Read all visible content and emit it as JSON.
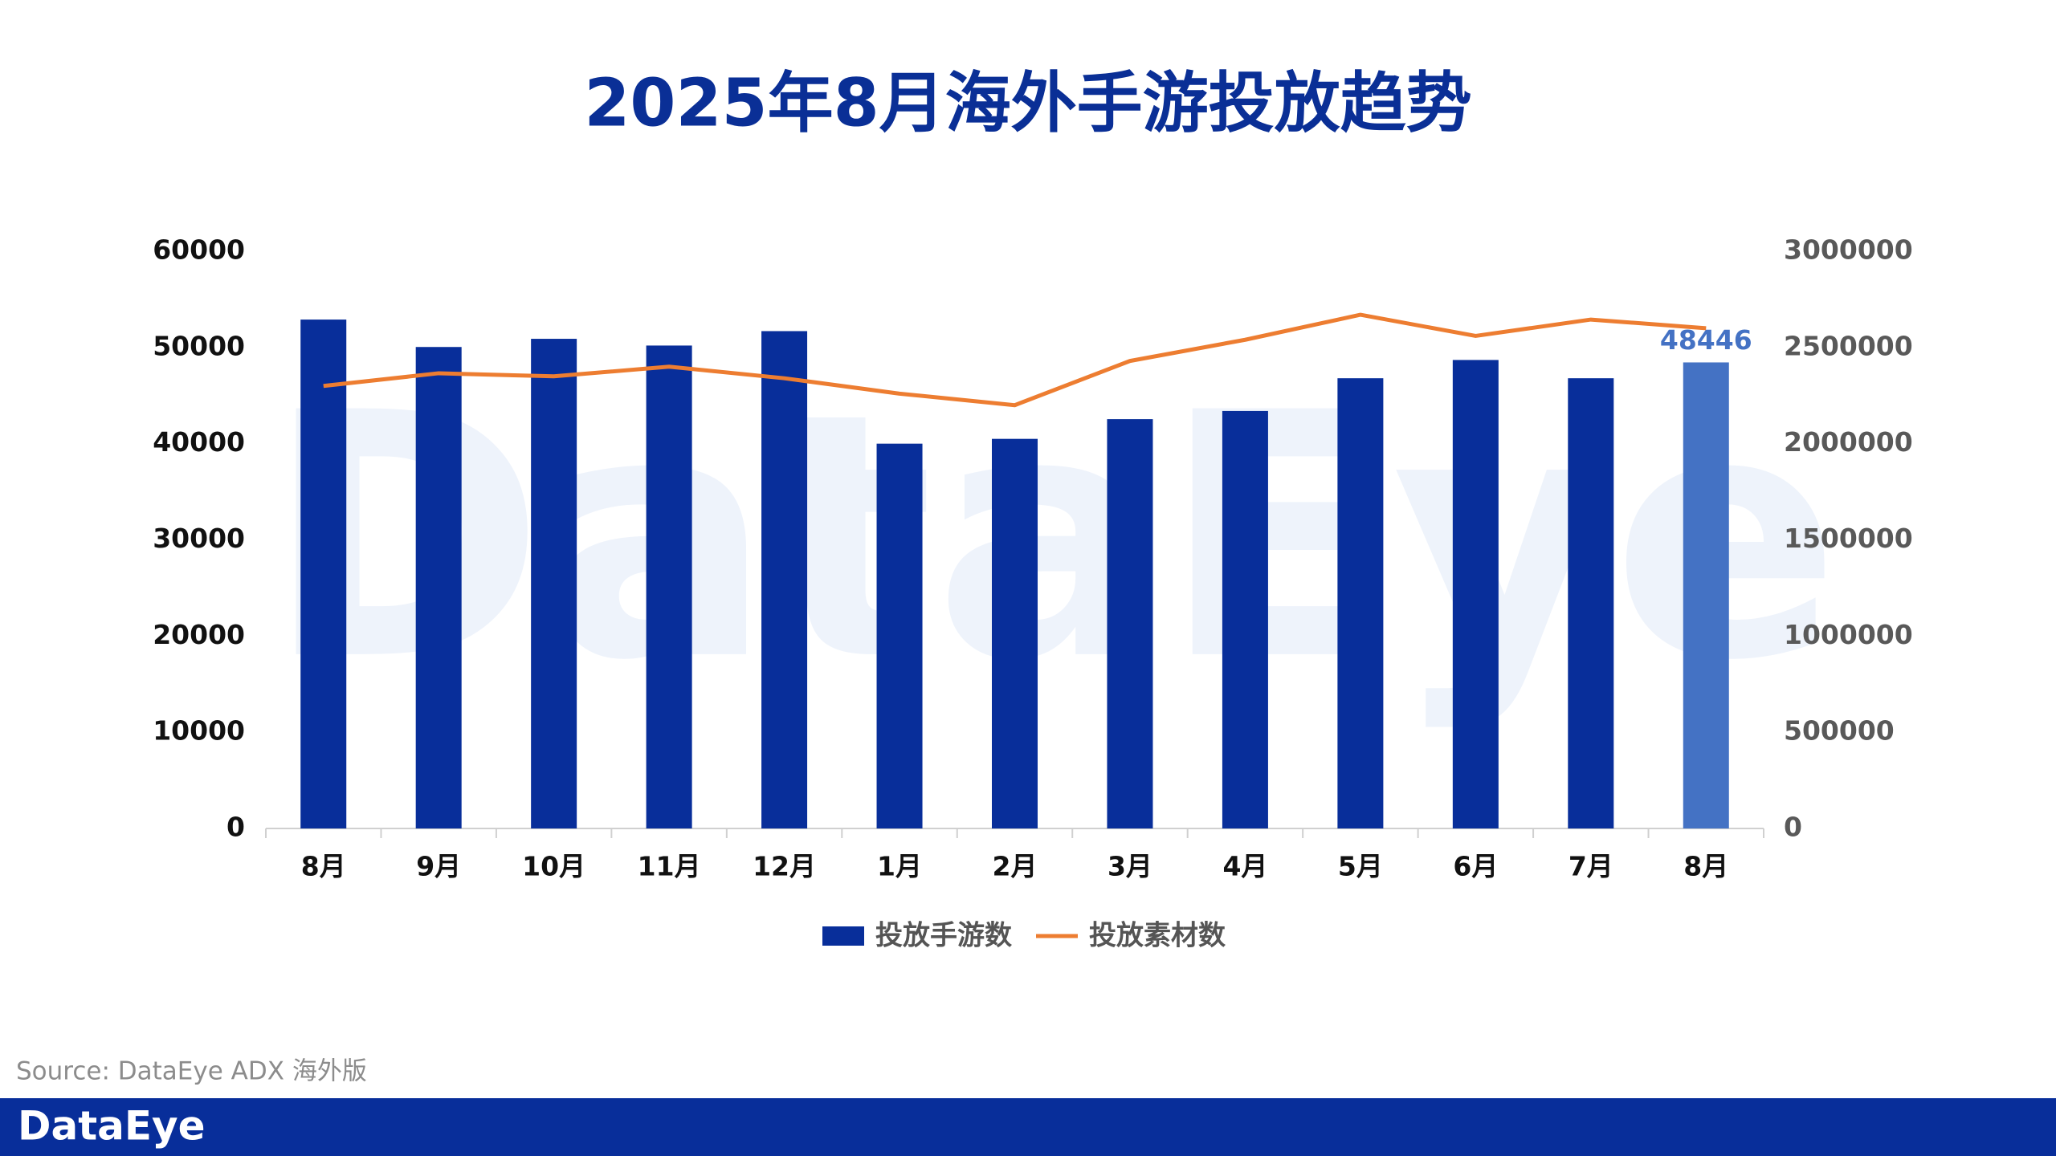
{
  "chart_data": {
    "type": "bar_line",
    "title": "2025年8月海外手游投放趋势",
    "watermark": "DataEye",
    "categories": [
      "8月",
      "9月",
      "10月",
      "11月",
      "12月",
      "1月",
      "2月",
      "3月",
      "4月",
      "5月",
      "6月",
      "7月",
      "8月"
    ],
    "series": [
      {
        "name": "投放手游数",
        "type": "bar",
        "axis": "y",
        "color": "#082e9a",
        "colors": [
          "#082e9a",
          "#082e9a",
          "#082e9a",
          "#082e9a",
          "#082e9a",
          "#082e9a",
          "#082e9a",
          "#082e9a",
          "#082e9a",
          "#082e9a",
          "#082e9a",
          "#082e9a",
          "#4472c4"
        ],
        "values": [
          52900,
          50050,
          50900,
          50200,
          51700,
          40000,
          40500,
          42550,
          43400,
          46800,
          48700,
          46800,
          48446
        ],
        "value_labels": [
          null,
          null,
          null,
          null,
          null,
          null,
          null,
          null,
          null,
          null,
          null,
          null,
          "48446"
        ]
      },
      {
        "name": "投放素材数",
        "type": "line",
        "axis": "y2",
        "color": "#ed7d31",
        "values": [
          2300000,
          2366000,
          2350000,
          2400000,
          2340000,
          2260000,
          2200000,
          2430000,
          2540000,
          2670000,
          2560000,
          2645000,
          2600000
        ]
      }
    ],
    "ylim": [
      0,
      60000
    ],
    "yticks": [
      0,
      10000,
      20000,
      30000,
      40000,
      50000,
      60000
    ],
    "y2lim": [
      0,
      3000000
    ],
    "y2ticks": [
      0,
      500000,
      1000000,
      1500000,
      2000000,
      2500000,
      3000000
    ],
    "source": "Source: DataEye ADX 海外版",
    "footer_logo": "DataEye"
  }
}
